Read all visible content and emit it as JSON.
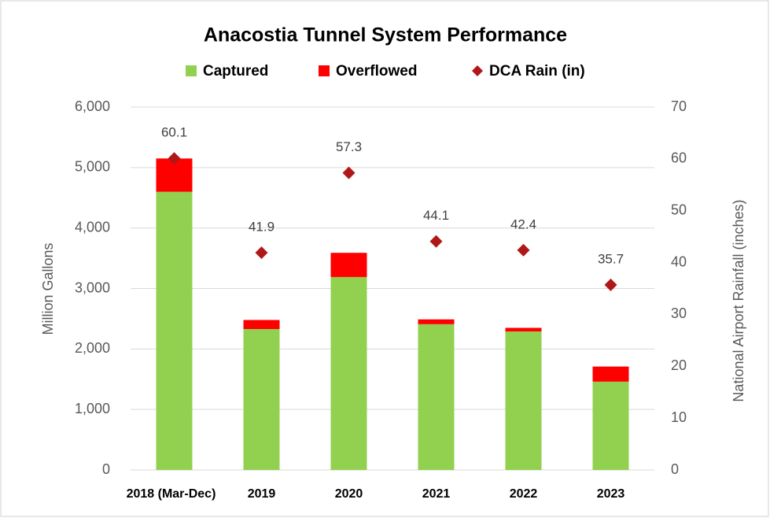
{
  "chart_data": {
    "type": "bar",
    "title": "Anacostia Tunnel System Performance",
    "stacked": true,
    "categories": [
      "2018 (Mar-Dec)",
      "2019",
      "2020",
      "2021",
      "2022",
      "2023"
    ],
    "series": [
      {
        "name": "Captured",
        "color": "#92d050",
        "values": [
          4600,
          2330,
          3190,
          2410,
          2290,
          1460
        ]
      },
      {
        "name": "Overflowed",
        "color": "#ff0000",
        "values": [
          550,
          150,
          400,
          80,
          60,
          250
        ]
      },
      {
        "name": "DCA Rain (in)",
        "color": "#b01818",
        "type": "scatter",
        "axis": "y2",
        "values": [
          60.1,
          41.9,
          57.3,
          44.1,
          42.4,
          35.7
        ]
      }
    ],
    "ylabel": "Million Gallons",
    "y2label": "National Airport Rainfall (inches)",
    "ylim": [
      0,
      6000
    ],
    "yticks": [
      0,
      {
        "value": 1000,
        "label": "1,000"
      },
      {
        "value": 2000,
        "label": "2,000"
      },
      {
        "value": 3000,
        "label": "3,000"
      },
      {
        "value": 4000,
        "label": "4,000"
      },
      {
        "value": 5000,
        "label": "5,000"
      },
      {
        "value": 6000,
        "label": "6,000"
      }
    ],
    "y2lim": [
      0,
      70
    ],
    "y2ticks": [
      0,
      10,
      20,
      30,
      40,
      50,
      60,
      70
    ],
    "grid": true,
    "legend": "top"
  }
}
